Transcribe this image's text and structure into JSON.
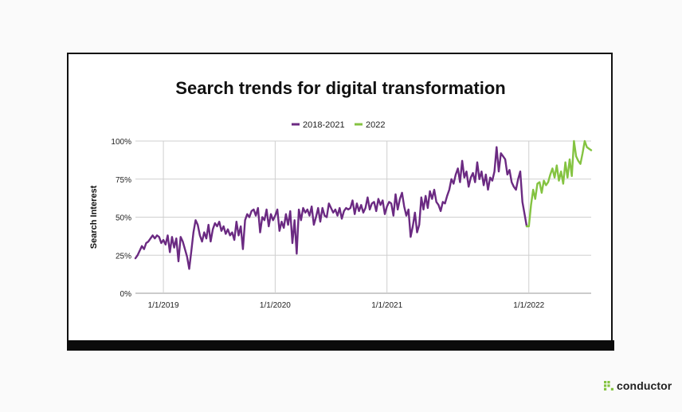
{
  "colors": {
    "series1": "#6b2a82",
    "series2": "#84c341",
    "grid": "#cfcfcf",
    "text": "#222222"
  },
  "brand": {
    "name": "conductor",
    "icon": "conductor-logo-icon"
  },
  "chart_data": {
    "type": "line",
    "title": "Search trends for digital transformation",
    "xlabel": "",
    "ylabel": "Search Interest",
    "ylim": [
      0,
      100
    ],
    "y_ticks": [
      "0%",
      "25%",
      "50%",
      "75%",
      "100%"
    ],
    "x_ticks": [
      "1/1/2019",
      "1/1/2020",
      "1/1/2021",
      "1/1/2022"
    ],
    "legend": "top-center",
    "grid": true,
    "series": [
      {
        "name": "2018-2021",
        "values": [
          23,
          25,
          28,
          31,
          29,
          33,
          34,
          36,
          38,
          36,
          38,
          37,
          33,
          35,
          32,
          38,
          27,
          37,
          30,
          36,
          21,
          37,
          34,
          29,
          24,
          16,
          28,
          40,
          48,
          45,
          38,
          34,
          40,
          36,
          45,
          34,
          42,
          46,
          44,
          47,
          41,
          44,
          39,
          42,
          38,
          40,
          35,
          47,
          38,
          44,
          29,
          48,
          52,
          50,
          54,
          55,
          51,
          56,
          40,
          50,
          48,
          55,
          44,
          52,
          48,
          51,
          55,
          41,
          47,
          43,
          52,
          45,
          54,
          33,
          48,
          26,
          55,
          48,
          56,
          53,
          55,
          51,
          57,
          45,
          50,
          56,
          47,
          56,
          51,
          50,
          59,
          56,
          53,
          55,
          51,
          56,
          49,
          54,
          56,
          55,
          56,
          61,
          52,
          59,
          54,
          58,
          53,
          56,
          63,
          55,
          59,
          60,
          54,
          62,
          58,
          61,
          52,
          57,
          60,
          59,
          51,
          65,
          55,
          62,
          66,
          57,
          51,
          55,
          37,
          44,
          53,
          40,
          45,
          63,
          55,
          64,
          56,
          67,
          62,
          68,
          60,
          58,
          54,
          60,
          59,
          64,
          68,
          75,
          72,
          78,
          82,
          73,
          87,
          76,
          80,
          70,
          76,
          79,
          73,
          86,
          75,
          80,
          71,
          78,
          68,
          76,
          74,
          80,
          96,
          80,
          92,
          90,
          88,
          78,
          81,
          73,
          70,
          68,
          75,
          80,
          60,
          52,
          44
        ]
      },
      {
        "name": "2022",
        "values": [
          44,
          58,
          68,
          62,
          72,
          73,
          66,
          74,
          71,
          73,
          78,
          82,
          76,
          84,
          74,
          80,
          72,
          86,
          76,
          88,
          77,
          100,
          90,
          87,
          85,
          92,
          100,
          96,
          95,
          94
        ]
      }
    ]
  }
}
